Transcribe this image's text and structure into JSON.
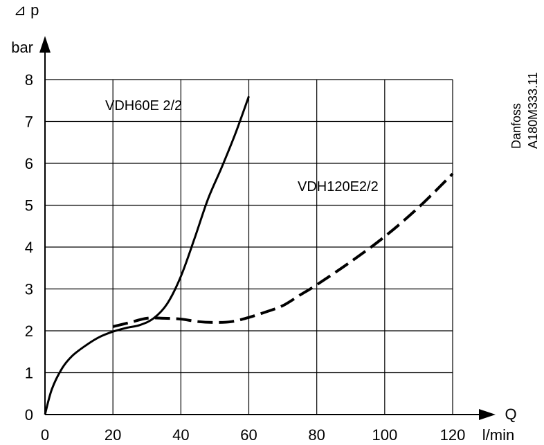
{
  "chart_data": {
    "type": "line",
    "ylabel_symbol": "⊿ p",
    "ylabel_unit": "bar",
    "xlabel_symbol": "Q",
    "xlabel_unit": "l/min",
    "xlim": [
      0,
      120
    ],
    "ylim": [
      0,
      8
    ],
    "xticks": [
      0,
      20,
      40,
      60,
      80,
      100,
      120
    ],
    "yticks": [
      0,
      1,
      2,
      3,
      4,
      5,
      6,
      7,
      8
    ],
    "grid": true,
    "series": [
      {
        "name": "VDH60E 2/2",
        "style": "solid",
        "color": "#000000",
        "x": [
          0,
          2,
          5,
          8,
          12,
          16,
          20,
          24,
          28,
          32,
          36,
          40,
          44,
          48,
          52,
          56,
          60
        ],
        "y": [
          0,
          0.6,
          1.1,
          1.4,
          1.65,
          1.85,
          1.98,
          2.07,
          2.14,
          2.3,
          2.65,
          3.3,
          4.2,
          5.15,
          5.9,
          6.7,
          7.6
        ]
      },
      {
        "name": "VDH120E2/2",
        "style": "dashed",
        "color": "#000000",
        "x": [
          20,
          25,
          30,
          35,
          40,
          45,
          50,
          55,
          60,
          65,
          70,
          75,
          80,
          90,
          100,
          110,
          120
        ],
        "y": [
          2.1,
          2.2,
          2.3,
          2.3,
          2.28,
          2.22,
          2.2,
          2.22,
          2.32,
          2.45,
          2.6,
          2.85,
          3.1,
          3.65,
          4.25,
          4.95,
          5.75
        ]
      }
    ]
  },
  "watermark": {
    "line1": "Danfoss",
    "line2": "A180M333.11"
  }
}
